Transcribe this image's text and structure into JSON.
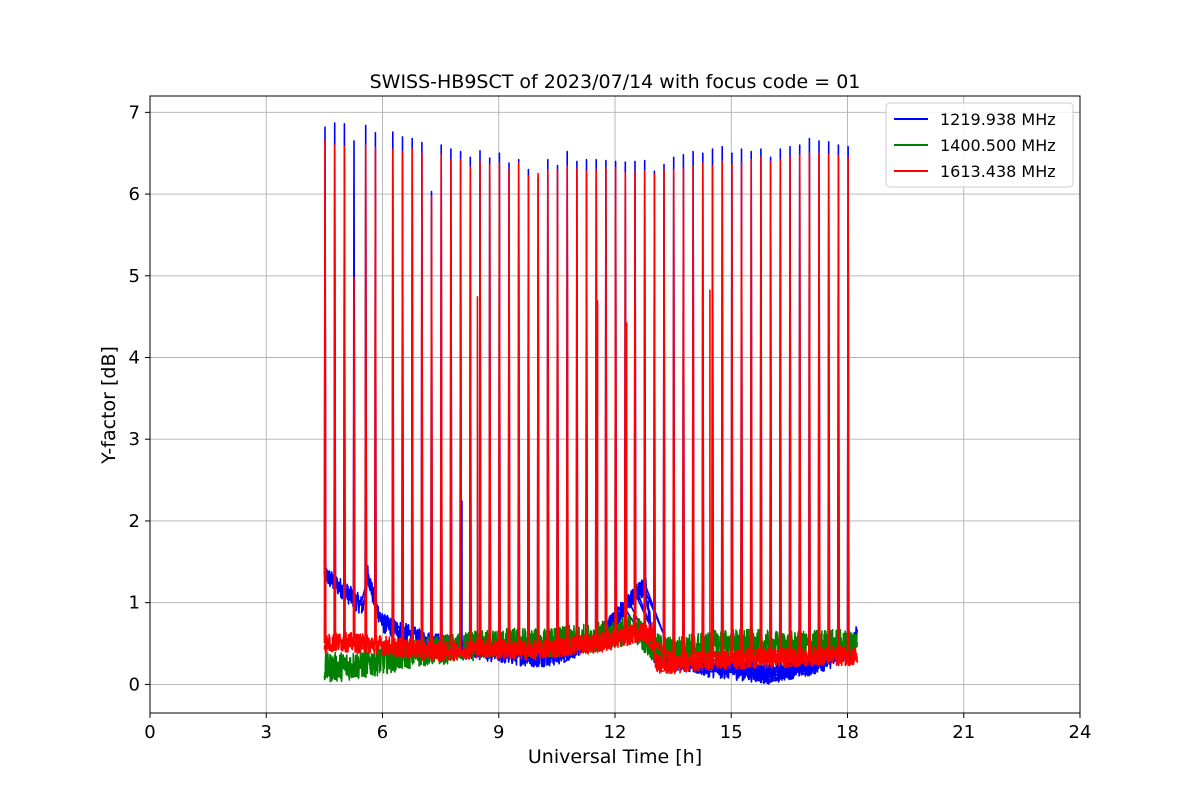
{
  "chart_data": {
    "type": "line",
    "title": "SWISS-HB9SCT of 2023/07/14 with focus code = 01",
    "xlabel": "Universal Time [h]",
    "ylabel": "Y-factor [dB]",
    "xlim": [
      0,
      24
    ],
    "ylim": [
      -0.35,
      7.2
    ],
    "xticks": [
      0,
      3,
      6,
      9,
      12,
      15,
      18,
      21,
      24
    ],
    "yticks": [
      0,
      1,
      2,
      3,
      4,
      5,
      6,
      7
    ],
    "grid": true,
    "legend_position": "top-right",
    "series": [
      {
        "name": "1219.938 MHz",
        "color": "#0000ff",
        "x": [
          4.5,
          5.0,
          5.5,
          5.6,
          5.8,
          6.0,
          6.5,
          7.0,
          7.5,
          8.0,
          8.5,
          9.0,
          9.5,
          10.0,
          10.5,
          11.0,
          11.5,
          12.0,
          12.5,
          12.8,
          13.0,
          13.5,
          14.0,
          14.5,
          15.0,
          15.5,
          16.0,
          16.5,
          17.0,
          17.5,
          18.0,
          18.25
        ],
        "values": [
          1.35,
          1.15,
          0.95,
          1.4,
          1.0,
          0.75,
          0.65,
          0.55,
          0.5,
          0.45,
          0.42,
          0.38,
          0.35,
          0.33,
          0.35,
          0.45,
          0.55,
          0.8,
          1.1,
          1.2,
          0.35,
          0.3,
          0.25,
          0.2,
          0.18,
          0.15,
          0.12,
          0.18,
          0.22,
          0.3,
          0.4,
          0.65
        ]
      },
      {
        "name": "1400.500 MHz",
        "color": "#008000",
        "x": [
          4.5,
          5.0,
          5.5,
          6.0,
          6.5,
          7.0,
          7.5,
          8.0,
          8.5,
          9.0,
          9.5,
          10.0,
          10.5,
          11.0,
          11.5,
          12.0,
          12.5,
          13.0,
          13.5,
          14.0,
          14.5,
          15.0,
          15.5,
          16.0,
          16.5,
          17.0,
          17.5,
          18.0,
          18.25
        ],
        "values": [
          0.2,
          0.22,
          0.25,
          0.3,
          0.35,
          0.4,
          0.42,
          0.45,
          0.48,
          0.5,
          0.52,
          0.5,
          0.52,
          0.55,
          0.58,
          0.62,
          0.7,
          0.45,
          0.4,
          0.45,
          0.48,
          0.5,
          0.5,
          0.48,
          0.47,
          0.48,
          0.5,
          0.5,
          0.5
        ]
      },
      {
        "name": "1613.438 MHz",
        "color": "#ff0000",
        "x": [
          4.5,
          5.0,
          5.5,
          6.0,
          6.5,
          7.0,
          7.5,
          8.0,
          8.5,
          9.0,
          9.5,
          10.0,
          10.5,
          11.0,
          11.5,
          12.0,
          12.5,
          12.95,
          13.05,
          13.5,
          14.0,
          14.5,
          15.0,
          15.5,
          16.0,
          16.5,
          17.0,
          17.5,
          18.0,
          18.25
        ],
        "values": [
          0.5,
          0.52,
          0.5,
          0.48,
          0.45,
          0.42,
          0.4,
          0.42,
          0.45,
          0.43,
          0.42,
          0.42,
          0.45,
          0.48,
          0.5,
          0.55,
          0.62,
          0.65,
          0.25,
          0.25,
          0.28,
          0.3,
          0.3,
          0.32,
          0.32,
          0.33,
          0.34,
          0.35,
          0.35,
          0.35
        ]
      }
    ],
    "spikes": {
      "times": [
        4.5,
        4.75,
        5.0,
        5.25,
        5.55,
        5.8,
        6.25,
        6.5,
        6.75,
        7.0,
        7.25,
        7.5,
        7.75,
        8.0,
        8.25,
        8.5,
        8.75,
        9.0,
        9.25,
        9.5,
        9.75,
        10.0,
        10.25,
        10.5,
        10.75,
        11.0,
        11.25,
        11.5,
        11.75,
        12.0,
        12.25,
        12.5,
        12.75,
        13.0,
        13.25,
        13.5,
        13.75,
        14.0,
        14.25,
        14.5,
        14.75,
        15.0,
        15.25,
        15.5,
        15.75,
        16.0,
        16.25,
        16.5,
        16.75,
        17.0,
        17.25,
        17.5,
        17.75,
        18.0
      ],
      "peak_1219": [
        6.82,
        6.87,
        6.86,
        6.65,
        6.84,
        6.75,
        6.76,
        6.7,
        6.68,
        6.63,
        6.03,
        6.6,
        6.55,
        6.52,
        6.45,
        6.53,
        6.44,
        6.5,
        6.38,
        6.42,
        6.3,
        6.2,
        6.42,
        6.35,
        6.52,
        6.4,
        6.42,
        6.42,
        6.41,
        6.4,
        6.39,
        6.4,
        6.41,
        6.28,
        6.36,
        6.45,
        6.48,
        6.52,
        6.5,
        6.55,
        6.58,
        6.5,
        6.55,
        6.52,
        6.55,
        6.45,
        6.55,
        6.58,
        6.6,
        6.68,
        6.65,
        6.64,
        6.6,
        6.58
      ],
      "peak_1613": [
        6.65,
        6.6,
        6.58,
        4.98,
        6.6,
        6.57,
        6.55,
        6.52,
        6.55,
        6.5,
        5.97,
        6.48,
        6.42,
        6.42,
        6.33,
        6.4,
        6.36,
        6.38,
        6.3,
        6.38,
        6.22,
        6.25,
        6.3,
        6.3,
        6.34,
        6.31,
        6.28,
        6.3,
        6.32,
        6.32,
        6.26,
        6.27,
        6.28,
        6.24,
        6.3,
        6.3,
        6.32,
        6.35,
        6.38,
        6.35,
        6.4,
        6.36,
        6.38,
        6.42,
        6.45,
        6.4,
        6.42,
        6.45,
        6.48,
        6.5,
        6.5,
        6.48,
        6.47,
        6.45
      ],
      "extra_spikes": [
        {
          "x": 8.45,
          "y": 4.75
        },
        {
          "x": 11.55,
          "y": 4.7
        },
        {
          "x": 12.3,
          "y": 4.43
        },
        {
          "x": 14.45,
          "y": 4.83
        },
        {
          "x": 8.05,
          "y": 2.25
        }
      ]
    }
  }
}
